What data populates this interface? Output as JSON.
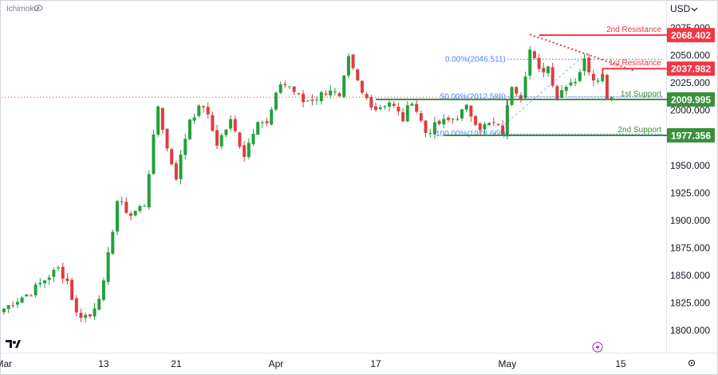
{
  "chart_data": {
    "type": "candlestick",
    "indicator_label": "Ichimoku",
    "currency_label": "USD",
    "y_ticks": [
      "1800.000",
      "1825.000",
      "1850.000",
      "1875.000",
      "1900.000",
      "1925.000",
      "1950.000",
      "1975.000",
      "2000.000",
      "2025.000",
      "2050.000",
      "2075.000"
    ],
    "ylim": [
      1782,
      2083
    ],
    "x_tick_labels": [
      "Mar",
      "13",
      "21",
      "Apr",
      "17",
      "May",
      "15"
    ],
    "x_tick_bar_index": [
      0,
      22,
      38,
      60,
      82,
      111,
      136
    ],
    "bars_total": 146,
    "up_color": "#22a03a",
    "down_color": "#e03c3c",
    "price_path": [
      [
        0,
        1820
      ],
      [
        3,
        1828
      ],
      [
        6,
        1835
      ],
      [
        10,
        1850
      ],
      [
        12,
        1856
      ],
      [
        14,
        1845
      ],
      [
        16,
        1815
      ],
      [
        19,
        1813
      ],
      [
        22,
        1842
      ],
      [
        25,
        1918
      ],
      [
        28,
        1905
      ],
      [
        31,
        1915
      ],
      [
        34,
        2004
      ],
      [
        36,
        1965
      ],
      [
        38,
        1940
      ],
      [
        41,
        1993
      ],
      [
        44,
        2005
      ],
      [
        47,
        1970
      ],
      [
        50,
        1990
      ],
      [
        53,
        1960
      ],
      [
        56,
        1993
      ],
      [
        58,
        1987
      ],
      [
        61,
        2025
      ],
      [
        63,
        2022
      ],
      [
        66,
        2008
      ],
      [
        69,
        2012
      ],
      [
        72,
        2020
      ],
      [
        74,
        2010
      ],
      [
        76,
        2046
      ],
      [
        79,
        2015
      ],
      [
        82,
        2002
      ],
      [
        85,
        2008
      ],
      [
        88,
        1992
      ],
      [
        90,
        2010
      ],
      [
        93,
        1980
      ],
      [
        96,
        1988
      ],
      [
        99,
        1992
      ],
      [
        102,
        2002
      ],
      [
        105,
        1985
      ],
      [
        108,
        1988
      ],
      [
        110,
        1980
      ],
      [
        112,
        2024
      ],
      [
        114,
        2014
      ],
      [
        116,
        2055
      ],
      [
        118,
        2035
      ],
      [
        120,
        2040
      ],
      [
        122,
        2012
      ],
      [
        124,
        2025
      ],
      [
        126,
        2028
      ],
      [
        128,
        2045
      ],
      [
        130,
        2030
      ],
      [
        132,
        2032
      ],
      [
        133,
        2014
      ],
      [
        134,
        2012
      ]
    ],
    "levels": [
      {
        "name": "2nd Resistance",
        "value": "2068.402",
        "kind": "resistance"
      },
      {
        "name": "1st Resistance",
        "value": "2037.982",
        "kind": "resistance"
      },
      {
        "name": "1st Support",
        "value": "2009.995",
        "kind": "support"
      },
      {
        "name": "2nd Support",
        "value": "1977.356",
        "kind": "support"
      }
    ],
    "fib_labels": [
      {
        "label": "0.00%(2046.511)",
        "value": 2046.511
      },
      {
        "label": "50.00%(2012.588)",
        "value": 2012.588
      },
      {
        "label": "100.00%(1978.666)",
        "value": 1978.666
      }
    ],
    "last_price_line": 2012,
    "trendline": {
      "from": [
        116,
        2069
      ],
      "to": [
        139,
        2036
      ]
    },
    "grid": false,
    "legend": "none"
  }
}
